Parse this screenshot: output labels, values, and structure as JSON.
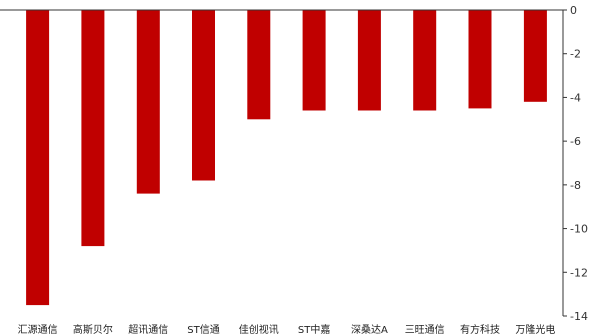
{
  "chart_data": {
    "type": "bar",
    "title": "",
    "xlabel": "",
    "ylabel": "",
    "categories": [
      "汇源通信",
      "高斯贝尔",
      "超讯通信",
      "ST信通",
      "佳创视讯",
      "ST中嘉",
      "深桑达A",
      "三旺通信",
      "有方科技",
      "万隆光电"
    ],
    "values": [
      -13.5,
      -10.8,
      -8.4,
      -7.8,
      -5.0,
      -4.6,
      -4.6,
      -4.6,
      -4.5,
      -4.2
    ],
    "ylim": [
      -14,
      0
    ],
    "yticks": [
      0,
      -2,
      -4,
      -6,
      -8,
      -10,
      -12,
      -14
    ],
    "axis_position": "right",
    "grid": false,
    "legend": "none",
    "bar_color": "#c00000",
    "axis_color": "#333333"
  }
}
